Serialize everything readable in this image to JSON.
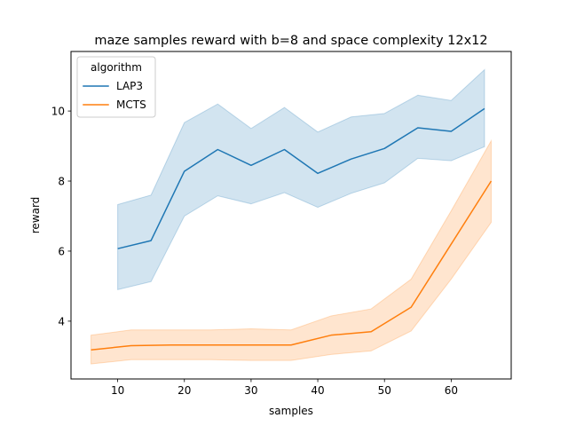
{
  "chart_data": {
    "type": "line",
    "title": "maze samples reward with b=8 and space complexity 12x12",
    "xlabel": "samples",
    "ylabel": "reward",
    "xlim": [
      3.0,
      69.0
    ],
    "ylim": [
      2.35,
      11.7
    ],
    "xticks": [
      10,
      20,
      30,
      40,
      50,
      60
    ],
    "yticks": [
      4,
      6,
      8,
      10
    ],
    "grid": false,
    "legend": {
      "title": "algorithm",
      "placement": "top-left"
    },
    "series": [
      {
        "name": "LAP3",
        "color": "#1f77b4",
        "band_color": "#1f77b4",
        "x": [
          10,
          15,
          20,
          25,
          30,
          35,
          40,
          45,
          50,
          55,
          60,
          65
        ],
        "y": [
          6.07,
          6.3,
          8.28,
          8.9,
          8.45,
          8.9,
          8.22,
          8.63,
          8.93,
          9.52,
          9.42,
          10.07
        ],
        "lower": [
          4.9,
          5.13,
          7.0,
          7.58,
          7.35,
          7.67,
          7.25,
          7.65,
          7.95,
          8.65,
          8.58,
          8.98
        ],
        "upper": [
          7.33,
          7.6,
          9.67,
          10.2,
          9.5,
          10.1,
          9.4,
          9.83,
          9.93,
          10.45,
          10.3,
          11.18
        ]
      },
      {
        "name": "MCTS",
        "color": "#ff7f0e",
        "band_color": "#ff7f0e",
        "x": [
          6,
          12,
          18,
          24,
          30,
          36,
          42,
          48,
          54,
          60,
          66
        ],
        "y": [
          3.18,
          3.3,
          3.32,
          3.32,
          3.32,
          3.32,
          3.6,
          3.7,
          4.4,
          6.2,
          8.0
        ],
        "lower": [
          2.78,
          2.9,
          2.9,
          2.9,
          2.88,
          2.88,
          3.05,
          3.15,
          3.72,
          5.2,
          6.82
        ],
        "upper": [
          3.6,
          3.75,
          3.75,
          3.75,
          3.78,
          3.75,
          4.15,
          4.35,
          5.2,
          7.15,
          9.15
        ]
      }
    ]
  }
}
